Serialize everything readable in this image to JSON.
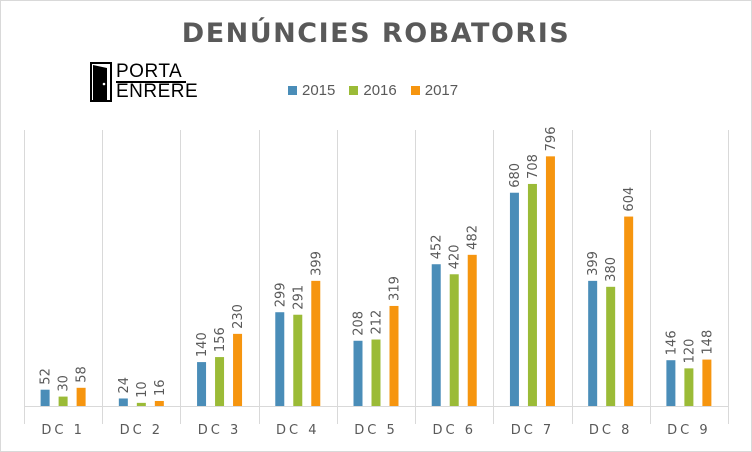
{
  "chart_data": {
    "type": "bar",
    "title": "DENÚNCIES ROBATORIS",
    "categories": [
      "DC 1",
      "DC 2",
      "DC 3",
      "DC 4",
      "DC 5",
      "DC 6",
      "DC 7",
      "DC 8",
      "DC 9"
    ],
    "series": [
      {
        "name": "2015",
        "color": "#4a8db8",
        "values": [
          52,
          24,
          140,
          299,
          208,
          452,
          680,
          399,
          146
        ]
      },
      {
        "name": "2016",
        "color": "#9bbb37",
        "values": [
          30,
          10,
          156,
          291,
          212,
          420,
          708,
          380,
          120
        ]
      },
      {
        "name": "2017",
        "color": "#f6950f",
        "values": [
          58,
          16,
          230,
          399,
          319,
          482,
          796,
          604,
          148
        ]
      }
    ],
    "ylim": [
      0,
      880
    ],
    "grid": "vertical-separators",
    "legend_position": "top"
  },
  "logo": {
    "line1": "PORTA",
    "line2": "ENRERE",
    "icon": "door-icon"
  }
}
